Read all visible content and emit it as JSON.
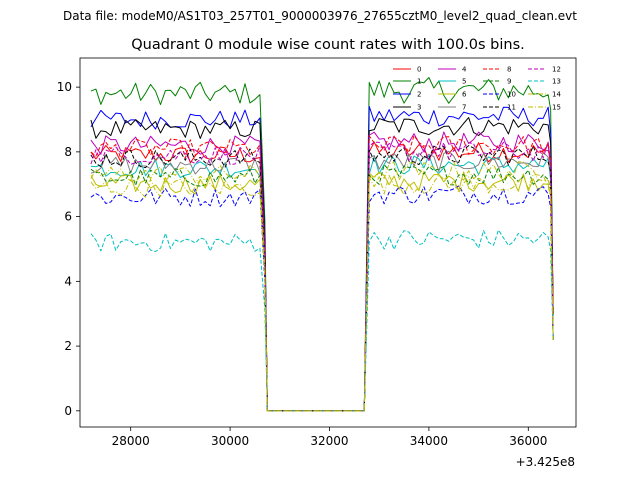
{
  "figure": {
    "suptitle": "Data file: modeM0/AS1T03_257T01_9000003976_27655cztM0_level2_quad_clean.evt",
    "offset_text": "+3.425e8"
  },
  "chart_data": {
    "type": "line",
    "title": "Quadrant 0 module wise count rates with 100.0s bins.",
    "xlabel": "",
    "ylabel": "",
    "xlim": [
      26980,
      36960
    ],
    "ylim": [
      -0.5,
      10.9
    ],
    "x_offset": 342500000,
    "xticks": [
      28000,
      30000,
      32000,
      34000,
      36000
    ],
    "xtick_labels": [
      "28000",
      "30000",
      "32000",
      "34000",
      "36000"
    ],
    "yticks": [
      0,
      2,
      4,
      6,
      8,
      10
    ],
    "ytick_labels": [
      "0",
      "2",
      "4",
      "6",
      "8",
      "10"
    ],
    "grid": false,
    "legend_position": "top-right",
    "segments": [
      [
        27200,
        30700
      ],
      [
        30700,
        32700
      ],
      [
        32700,
        36500
      ]
    ],
    "series": [
      {
        "name": "0",
        "color": "#ff0000",
        "dash": "solid",
        "level": 7.9
      },
      {
        "name": "1",
        "color": "#008000",
        "dash": "solid",
        "level": 9.8
      },
      {
        "name": "2",
        "color": "#0000ff",
        "dash": "solid",
        "level": 9.0
      },
      {
        "name": "3",
        "color": "#000000",
        "dash": "solid",
        "level": 8.7
      },
      {
        "name": "4",
        "color": "#bf00bf",
        "dash": "solid",
        "level": 8.2
      },
      {
        "name": "5",
        "color": "#00bfbf",
        "dash": "solid",
        "level": 7.5
      },
      {
        "name": "6",
        "color": "#bfbf00",
        "dash": "solid",
        "level": 7.0
      },
      {
        "name": "7",
        "color": "#808080",
        "dash": "solid",
        "level": 7.6
      },
      {
        "name": "8",
        "color": "#ff0000",
        "dash": "dashed",
        "level": 8.1
      },
      {
        "name": "9",
        "color": "#008000",
        "dash": "dashed",
        "level": 7.2
      },
      {
        "name": "10",
        "color": "#0000ff",
        "dash": "dashed",
        "level": 6.6
      },
      {
        "name": "11",
        "color": "#000000",
        "dash": "dashed",
        "level": 7.8
      },
      {
        "name": "12",
        "color": "#bf00bf",
        "dash": "dashed",
        "level": 7.9
      },
      {
        "name": "13",
        "color": "#00bfbf",
        "dash": "dashed",
        "level": 5.2
      },
      {
        "name": "14",
        "color": "#bfbf00",
        "dash": "dashdot",
        "level": 6.9
      },
      {
        "name": "15",
        "color": "#bfbf00",
        "dash": "dashdot",
        "level": 7.3
      }
    ]
  }
}
